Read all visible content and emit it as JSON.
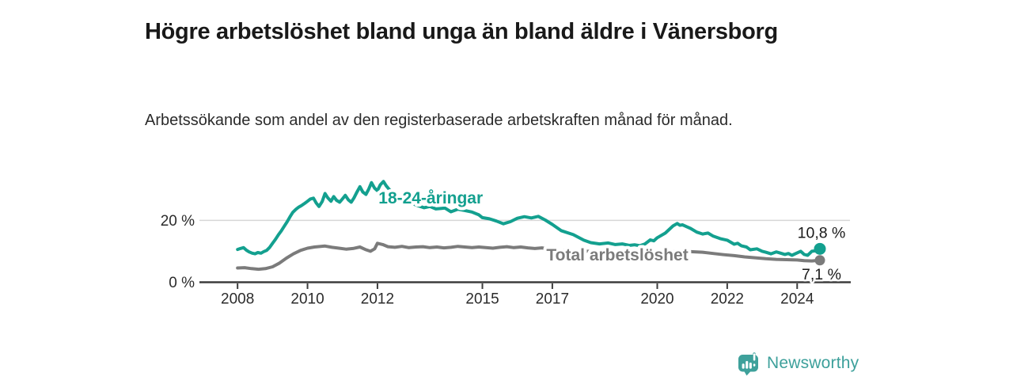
{
  "header": {
    "title": "Högre arbetslöshet bland unga än bland äldre i Vänersborg",
    "subtitle": "Arbetssökande som andel av den registerbaserade arbetskraften månad för månad."
  },
  "branding": {
    "logo_text": "Newsworthy",
    "logo_icon": "newsworthy-speech-bubble-bar-chart-icon",
    "brand_color": "#3da09b"
  },
  "chart_data": {
    "type": "line",
    "xlabel": "",
    "ylabel": "",
    "y_unit": "%",
    "xlim": [
      2006.91,
      2025.51
    ],
    "ylim": [
      0,
      37
    ],
    "grid_values": [
      20
    ],
    "grid_on": true,
    "x_ticks": [
      2008,
      2010,
      2012,
      2015,
      2017,
      2020,
      2022,
      2024
    ],
    "y_ticks": [
      {
        "value": 0,
        "label": "0 %"
      },
      {
        "value": 20,
        "label": "20 %"
      }
    ],
    "axis_color": "#3d3d3d",
    "grid_color": "#d7d7d7",
    "series": [
      {
        "id": "total",
        "name": "Total arbetslöshet",
        "color": "#7b7b7b",
        "label_pos": [
          2016.83,
          9.0
        ],
        "end_label": "7,1 %",
        "end_label_side": "below",
        "points": [
          [
            2008.0,
            4.6
          ],
          [
            2008.2,
            4.7
          ],
          [
            2008.4,
            4.4
          ],
          [
            2008.6,
            4.2
          ],
          [
            2008.8,
            4.4
          ],
          [
            2009.0,
            5.0
          ],
          [
            2009.2,
            6.2
          ],
          [
            2009.4,
            7.8
          ],
          [
            2009.6,
            9.2
          ],
          [
            2009.8,
            10.3
          ],
          [
            2010.0,
            11.0
          ],
          [
            2010.2,
            11.4
          ],
          [
            2010.5,
            11.7
          ],
          [
            2010.7,
            11.3
          ],
          [
            2010.9,
            11.0
          ],
          [
            2011.1,
            10.7
          ],
          [
            2011.3,
            10.9
          ],
          [
            2011.5,
            11.4
          ],
          [
            2011.65,
            10.6
          ],
          [
            2011.8,
            10.0
          ],
          [
            2011.92,
            10.8
          ],
          [
            2012.0,
            12.6
          ],
          [
            2012.15,
            12.2
          ],
          [
            2012.3,
            11.5
          ],
          [
            2012.5,
            11.3
          ],
          [
            2012.7,
            11.6
          ],
          [
            2012.9,
            11.2
          ],
          [
            2013.1,
            11.4
          ],
          [
            2013.3,
            11.5
          ],
          [
            2013.5,
            11.2
          ],
          [
            2013.7,
            11.4
          ],
          [
            2013.9,
            11.1
          ],
          [
            2014.1,
            11.3
          ],
          [
            2014.3,
            11.6
          ],
          [
            2014.5,
            11.4
          ],
          [
            2014.7,
            11.2
          ],
          [
            2014.9,
            11.4
          ],
          [
            2015.1,
            11.2
          ],
          [
            2015.3,
            11.0
          ],
          [
            2015.5,
            11.3
          ],
          [
            2015.7,
            11.5
          ],
          [
            2015.9,
            11.2
          ],
          [
            2016.1,
            11.4
          ],
          [
            2016.3,
            11.1
          ],
          [
            2016.5,
            10.9
          ],
          [
            2016.7,
            11.1
          ],
          [
            2016.9,
            10.7
          ],
          [
            2017.1,
            10.5
          ],
          [
            2017.5,
            10.2
          ],
          [
            2018.0,
            10.0
          ],
          [
            2018.5,
            9.8
          ],
          [
            2019.0,
            9.6
          ],
          [
            2019.5,
            9.5
          ],
          [
            2020.0,
            9.7
          ],
          [
            2020.5,
            10.1
          ],
          [
            2020.9,
            9.9
          ],
          [
            2021.3,
            9.7
          ],
          [
            2021.6,
            9.3
          ],
          [
            2021.9,
            8.9
          ],
          [
            2022.2,
            8.6
          ],
          [
            2022.5,
            8.2
          ],
          [
            2022.8,
            7.9
          ],
          [
            2023.1,
            7.6
          ],
          [
            2023.4,
            7.4
          ],
          [
            2023.7,
            7.3
          ],
          [
            2024.0,
            7.2
          ],
          [
            2024.2,
            7.0
          ],
          [
            2024.42,
            6.9
          ],
          [
            2024.65,
            7.1
          ]
        ]
      },
      {
        "id": "youth-18-24",
        "name": "18-24-åringar",
        "color": "#13a08f",
        "label_pos": [
          2012.03,
          27.4
        ],
        "end_label": "10,8 %",
        "end_label_side": "above",
        "points": [
          [
            2008.0,
            10.6
          ],
          [
            2008.08,
            10.9
          ],
          [
            2008.17,
            11.2
          ],
          [
            2008.25,
            10.4
          ],
          [
            2008.33,
            9.8
          ],
          [
            2008.42,
            9.4
          ],
          [
            2008.5,
            9.2
          ],
          [
            2008.58,
            9.6
          ],
          [
            2008.67,
            9.4
          ],
          [
            2008.75,
            9.9
          ],
          [
            2008.83,
            10.3
          ],
          [
            2008.92,
            11.3
          ],
          [
            2009.0,
            12.6
          ],
          [
            2009.08,
            13.8
          ],
          [
            2009.17,
            15.4
          ],
          [
            2009.25,
            16.6
          ],
          [
            2009.33,
            18.0
          ],
          [
            2009.42,
            19.6
          ],
          [
            2009.5,
            21.2
          ],
          [
            2009.58,
            22.6
          ],
          [
            2009.67,
            23.6
          ],
          [
            2009.75,
            24.3
          ],
          [
            2009.83,
            24.8
          ],
          [
            2009.92,
            25.5
          ],
          [
            2010.0,
            26.2
          ],
          [
            2010.08,
            26.9
          ],
          [
            2010.17,
            27.2
          ],
          [
            2010.25,
            25.6
          ],
          [
            2010.33,
            24.5
          ],
          [
            2010.42,
            26.1
          ],
          [
            2010.5,
            28.7
          ],
          [
            2010.58,
            27.3
          ],
          [
            2010.67,
            26.2
          ],
          [
            2010.75,
            27.7
          ],
          [
            2010.83,
            26.5
          ],
          [
            2010.92,
            25.9
          ],
          [
            2011.0,
            27.0
          ],
          [
            2011.08,
            28.1
          ],
          [
            2011.17,
            26.6
          ],
          [
            2011.25,
            25.9
          ],
          [
            2011.33,
            27.3
          ],
          [
            2011.42,
            29.3
          ],
          [
            2011.5,
            30.9
          ],
          [
            2011.58,
            29.2
          ],
          [
            2011.67,
            28.4
          ],
          [
            2011.75,
            30.1
          ],
          [
            2011.83,
            32.2
          ],
          [
            2011.92,
            30.4
          ],
          [
            2012.0,
            29.6
          ],
          [
            2012.08,
            31.5
          ],
          [
            2012.17,
            32.6
          ],
          [
            2012.25,
            31.2
          ],
          [
            2012.33,
            30.1
          ],
          [
            2012.5,
            28.6
          ],
          [
            2012.67,
            27.4
          ],
          [
            2012.83,
            26.3
          ],
          [
            2013.0,
            25.4
          ],
          [
            2013.17,
            24.7
          ],
          [
            2013.33,
            24.1
          ],
          [
            2013.5,
            24.5
          ],
          [
            2013.67,
            23.7
          ],
          [
            2013.83,
            23.9
          ],
          [
            2013.93,
            24.0
          ],
          [
            2014.1,
            22.8
          ],
          [
            2014.3,
            23.6
          ],
          [
            2014.5,
            23.2
          ],
          [
            2014.7,
            22.7
          ],
          [
            2014.9,
            21.8
          ],
          [
            2015.0,
            20.9
          ],
          [
            2015.2,
            20.5
          ],
          [
            2015.4,
            19.8
          ],
          [
            2015.6,
            18.9
          ],
          [
            2015.8,
            19.6
          ],
          [
            2016.0,
            20.7
          ],
          [
            2016.2,
            21.2
          ],
          [
            2016.4,
            20.8
          ],
          [
            2016.6,
            21.3
          ],
          [
            2016.8,
            20.1
          ],
          [
            2017.0,
            18.7
          ],
          [
            2017.25,
            16.7
          ],
          [
            2017.6,
            15.4
          ],
          [
            2017.9,
            13.6
          ],
          [
            2018.1,
            12.8
          ],
          [
            2018.35,
            12.4
          ],
          [
            2018.6,
            12.7
          ],
          [
            2018.8,
            12.2
          ],
          [
            2019.0,
            12.4
          ],
          [
            2019.2,
            11.9
          ],
          [
            2019.35,
            12.1
          ],
          [
            2019.5,
            11.8
          ],
          [
            2019.65,
            12.4
          ],
          [
            2019.8,
            13.7
          ],
          [
            2019.9,
            13.4
          ],
          [
            2020.0,
            14.4
          ],
          [
            2020.23,
            15.9
          ],
          [
            2020.45,
            18.2
          ],
          [
            2020.57,
            19.0
          ],
          [
            2020.65,
            18.4
          ],
          [
            2020.72,
            18.6
          ],
          [
            2020.85,
            17.9
          ],
          [
            2020.95,
            17.4
          ],
          [
            2021.13,
            16.2
          ],
          [
            2021.3,
            15.6
          ],
          [
            2021.45,
            15.9
          ],
          [
            2021.6,
            14.9
          ],
          [
            2021.8,
            14.1
          ],
          [
            2022.0,
            13.6
          ],
          [
            2022.2,
            12.3
          ],
          [
            2022.3,
            12.6
          ],
          [
            2022.4,
            11.8
          ],
          [
            2022.55,
            11.4
          ],
          [
            2022.66,
            10.5
          ],
          [
            2022.85,
            10.8
          ],
          [
            2023.0,
            10.0
          ],
          [
            2023.1,
            9.7
          ],
          [
            2023.25,
            9.2
          ],
          [
            2023.4,
            9.8
          ],
          [
            2023.5,
            9.5
          ],
          [
            2023.65,
            9.0
          ],
          [
            2023.75,
            9.3
          ],
          [
            2023.85,
            8.7
          ],
          [
            2024.0,
            9.5
          ],
          [
            2024.1,
            10.0
          ],
          [
            2024.2,
            9.0
          ],
          [
            2024.3,
            8.7
          ],
          [
            2024.42,
            10.0
          ],
          [
            2024.55,
            10.2
          ],
          [
            2024.65,
            10.8
          ]
        ]
      }
    ]
  }
}
